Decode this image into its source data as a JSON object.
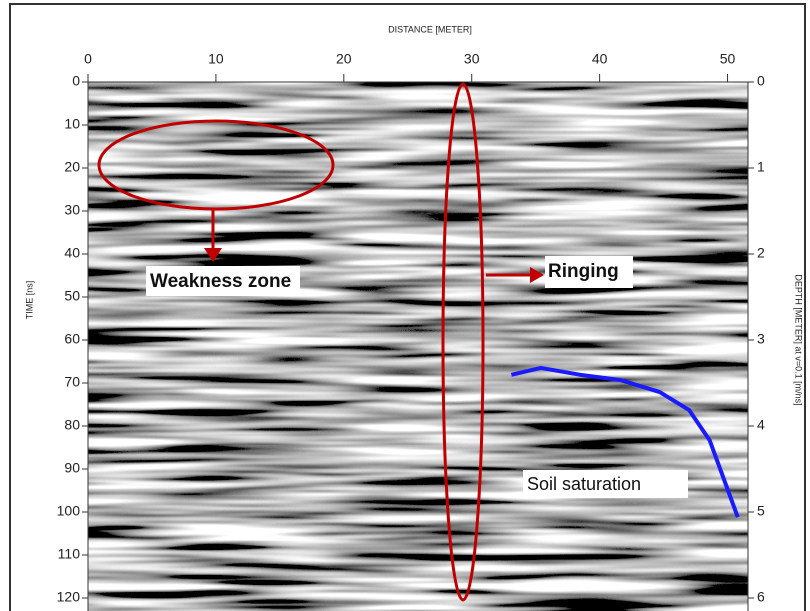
{
  "chart_data": {
    "type": "radargram",
    "xlabel": "DISTANCE [METER]",
    "ylabel": "TIME [ns]",
    "y2label": "DEPTH [METER] at v=0.1 [m/ns]",
    "xlim": [
      0,
      51.6
    ],
    "xticks": [
      0,
      10,
      20,
      30,
      40,
      50
    ],
    "ylim": [
      0,
      122
    ],
    "yticks": [
      0,
      10,
      20,
      30,
      40,
      50,
      60,
      70,
      80,
      90,
      100,
      110,
      120
    ],
    "y2lim": [
      0,
      6.1
    ],
    "y2ticks": [
      0,
      1,
      2,
      3,
      4,
      5,
      6
    ],
    "lines": [
      {
        "color": "#1a1aff",
        "x": [
          33.1,
          35.4,
          38.5,
          41.6,
          44.7,
          47.0,
          48.6,
          50.8
        ],
        "values": [
          68.1,
          66.5,
          68.1,
          69.3,
          72.1,
          76.3,
          83.3,
          101.2
        ]
      }
    ],
    "annotations": [
      {
        "text": "Weakness zone"
      },
      {
        "text": "Ringing"
      },
      {
        "text": "Soil saturation"
      }
    ]
  }
}
